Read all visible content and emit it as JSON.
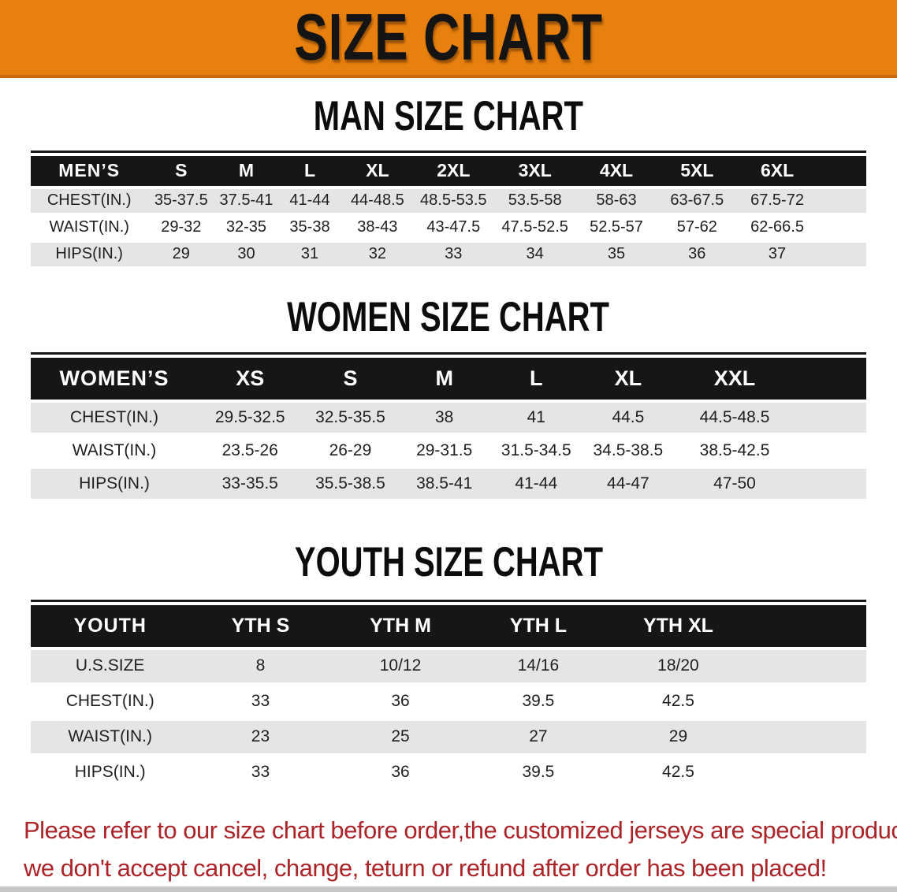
{
  "banner": {
    "title": "SIZE CHART",
    "bg_color": "#E8800F"
  },
  "sections": [
    {
      "id": "men",
      "heading": "MAN SIZE CHART",
      "group_label": "MEN’S",
      "columns": [
        "S",
        "M",
        "L",
        "XL",
        "2XL",
        "3XL",
        "4XL",
        "5XL",
        "6XL"
      ],
      "rows": [
        {
          "label": "CHEST(IN.)",
          "values": [
            "35-37.5",
            "37.5-41",
            "41-44",
            "44-48.5",
            "48.5-53.5",
            "53.5-58",
            "58-63",
            "63-67.5",
            "67.5-72"
          ]
        },
        {
          "label": "WAIST(IN.)",
          "values": [
            "29-32",
            "32-35",
            "35-38",
            "38-43",
            "43-47.5",
            "47.5-52.5",
            "52.5-57",
            "57-62",
            "62-66.5"
          ]
        },
        {
          "label": "HIPS(IN.)",
          "values": [
            "29",
            "30",
            "31",
            "32",
            "33",
            "34",
            "35",
            "36",
            "37"
          ]
        }
      ]
    },
    {
      "id": "women",
      "heading": "WOMEN SIZE CHART",
      "group_label": "WOMEN’S",
      "columns": [
        "XS",
        "S",
        "M",
        "L",
        "XL",
        "XXL"
      ],
      "rows": [
        {
          "label": "CHEST(IN.)",
          "values": [
            "29.5-32.5",
            "32.5-35.5",
            "38",
            "41",
            "44.5",
            "44.5-48.5"
          ]
        },
        {
          "label": "WAIST(IN.)",
          "values": [
            "23.5-26",
            "26-29",
            "29-31.5",
            "31.5-34.5",
            "34.5-38.5",
            "38.5-42.5"
          ]
        },
        {
          "label": "HIPS(IN.)",
          "values": [
            "33-35.5",
            "35.5-38.5",
            "38.5-41",
            "41-44",
            "44-47",
            "47-50"
          ]
        }
      ]
    },
    {
      "id": "youth",
      "heading": "YOUTH SIZE CHART",
      "group_label": "YOUTH",
      "columns": [
        "YTH S",
        "YTH M",
        "YTH L",
        "YTH XL"
      ],
      "rows": [
        {
          "label": "U.S.SIZE",
          "values": [
            "8",
            "10/12",
            "14/16",
            "18/20"
          ]
        },
        {
          "label": "CHEST(IN.)",
          "values": [
            "33",
            "36",
            "39.5",
            "42.5"
          ]
        },
        {
          "label": "WAIST(IN.)",
          "values": [
            "23",
            "25",
            "27",
            "29"
          ]
        },
        {
          "label": "HIPS(IN.)",
          "values": [
            "33",
            "36",
            "39.5",
            "42.5"
          ]
        }
      ]
    }
  ],
  "footer": {
    "color": "#AD2428",
    "lines": [
      "Please refer to our size chart before order,the customized jerseys are special products,",
      "we don't accept cancel, change, teturn or refund after order has been placed!"
    ]
  }
}
